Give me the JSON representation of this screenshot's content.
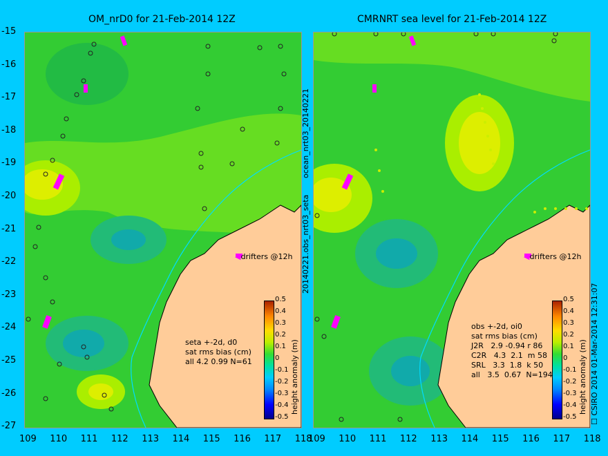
{
  "left_panel": {
    "title": "OM_nrD0 for 21-Feb-2014 12Z",
    "drifter_label": "drifters @12h",
    "stats": [
      "seta +-2d, d0",
      "sat rms bias (cm)",
      "all 4.2 0.99 N=61"
    ]
  },
  "right_panel": {
    "title": "CMRNRT sea level  for 21-Feb-2014 12Z",
    "drifter_label": "drifters @12h",
    "stats": [
      "obs +-2d, oi0",
      "sat rms bias (cm)",
      "J2R   2.9 -0.94 r 86",
      "C2R   4.3  2.1  m 58",
      "SRL   3.3  1.8  k 50",
      "all   3.5  0.67  N=194"
    ]
  },
  "axes": {
    "y_ticks": [
      "-15",
      "-16",
      "-17",
      "-18",
      "-19",
      "-20",
      "-21",
      "-22",
      "-23",
      "-24",
      "-25",
      "-26",
      "-27"
    ],
    "x_ticks": [
      "109",
      "110",
      "111",
      "112",
      "113",
      "114",
      "115",
      "116",
      "117",
      "118"
    ]
  },
  "colorbar": {
    "ticks": [
      "0.5",
      "0.4",
      "0.3",
      "0.2",
      "0.1",
      "0",
      "-0.1",
      "-0.2",
      "-0.3",
      "-0.4",
      "-0.5"
    ],
    "label": "height anomaly (m)"
  },
  "side_labels": {
    "top": "ocean_nrt03_20140221",
    "bottom": "20140221.obs_nrt03_seta",
    "credit": "CSIRO 2014  01-Mar-2014 12:31:07"
  }
}
